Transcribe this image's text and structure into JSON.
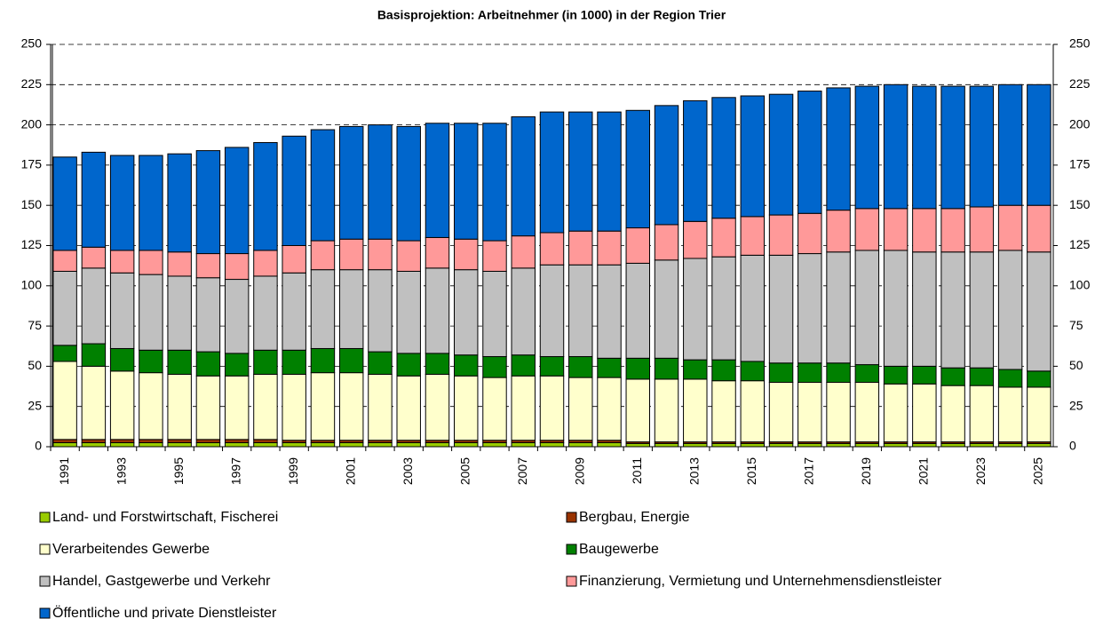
{
  "chart_data": {
    "type": "stacked_bar",
    "title": "Basisprojektion: Arbeitnehmer (in 1000) in der Region Trier",
    "categories": [
      "1991",
      null,
      "1993",
      null,
      "1995",
      null,
      "1997",
      null,
      "1999",
      null,
      "2001",
      null,
      "2003",
      null,
      "2005",
      null,
      "2007",
      null,
      "2009",
      null,
      "2011",
      null,
      "2013",
      null,
      "2015",
      null,
      "2017",
      null,
      "2019",
      null,
      "2021",
      null,
      "2023",
      null,
      "2025"
    ],
    "series": [
      {
        "name": "Land- und Forstwirtschaft, Fischerei",
        "color": "#99cc00",
        "values": [
          2.5,
          2.5,
          2.5,
          2.5,
          2.5,
          2.5,
          2.5,
          2.5,
          2.5,
          2.5,
          2.5,
          2.5,
          2.5,
          2.5,
          2.5,
          2.5,
          2.5,
          2.5,
          2.5,
          2.5,
          2,
          2,
          2,
          2,
          2,
          2,
          2,
          2,
          2,
          2,
          2,
          2,
          2,
          2,
          2
        ]
      },
      {
        "name": "Bergbau, Energie",
        "color": "#993300",
        "values": [
          2,
          2,
          2,
          2,
          2,
          2,
          2,
          2,
          1.5,
          1.5,
          1.5,
          1.5,
          1.5,
          1.5,
          1.5,
          1.5,
          1.5,
          1.5,
          1.5,
          1.5,
          1,
          1,
          1,
          1,
          1,
          1,
          1,
          1,
          1,
          1,
          1,
          1,
          1,
          1,
          1
        ]
      },
      {
        "name": "Verarbeitendes Gewerbe",
        "color": "#ffffcc",
        "values": [
          48.5,
          45.5,
          42.5,
          41.5,
          40.5,
          39.5,
          39.5,
          40.5,
          41,
          42,
          42,
          41,
          40,
          41,
          40,
          39,
          40,
          40,
          39,
          39,
          39,
          39,
          39,
          38,
          38,
          37,
          37,
          37,
          37,
          36,
          36,
          35,
          35,
          34,
          34
        ]
      },
      {
        "name": "Baugewerbe",
        "color": "#008000",
        "values": [
          10,
          14,
          14,
          14,
          15,
          15,
          14,
          15,
          15,
          15,
          15,
          14,
          14,
          13,
          13,
          13,
          13,
          12,
          13,
          12,
          13,
          13,
          12,
          13,
          12,
          12,
          12,
          12,
          11,
          11,
          11,
          11,
          11,
          11,
          10
        ]
      },
      {
        "name": "Handel, Gastgewerbe und Verkehr",
        "color": "#c0c0c0",
        "values": [
          46,
          47,
          47,
          47,
          46,
          46,
          46,
          46,
          48,
          49,
          49,
          51,
          51,
          53,
          53,
          53,
          54,
          57,
          57,
          58,
          59,
          61,
          63,
          64,
          66,
          67,
          68,
          69,
          71,
          72,
          71,
          72,
          72,
          74,
          74
        ]
      },
      {
        "name": "Finanzierung, Vermietung und Unternehmensdienstleister",
        "color": "#ff9999",
        "values": [
          13,
          13,
          14,
          15,
          15,
          15,
          16,
          16,
          17,
          18,
          19,
          19,
          19,
          19,
          19,
          19,
          20,
          20,
          21,
          21,
          22,
          22,
          23,
          24,
          24,
          25,
          25,
          26,
          26,
          26,
          27,
          27,
          28,
          28,
          29
        ]
      },
      {
        "name": "Öffentliche und private Dienstleister",
        "color": "#0066cc",
        "values": [
          58,
          59,
          59,
          59,
          61,
          64,
          66,
          67,
          68,
          69,
          70,
          71,
          71,
          71,
          72,
          73,
          74,
          75,
          74,
          74,
          73,
          74,
          75,
          75,
          75,
          75,
          76,
          76,
          76,
          77,
          76,
          76,
          75,
          75,
          75
        ]
      }
    ],
    "ylim": [
      0,
      250
    ],
    "yticks": [
      0,
      25,
      50,
      75,
      100,
      125,
      150,
      175,
      200,
      225,
      250
    ],
    "y2lim": [
      0,
      250
    ],
    "y2ticks": [
      0,
      25,
      50,
      75,
      100,
      125,
      150,
      175,
      200,
      225,
      250
    ],
    "grid": true
  }
}
